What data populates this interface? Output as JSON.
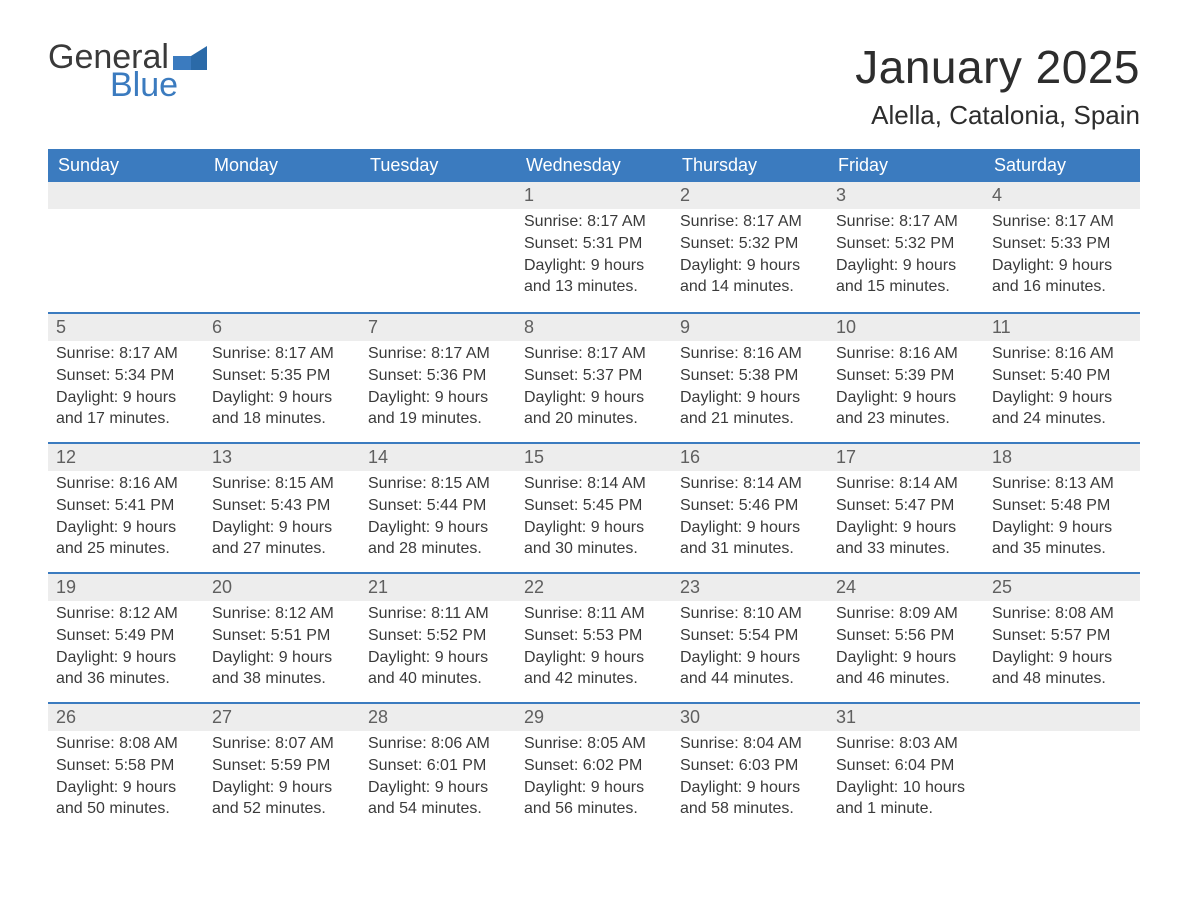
{
  "logo": {
    "line1": "General",
    "line2": "Blue"
  },
  "title": "January 2025",
  "location": "Alella, Catalonia, Spain",
  "colors": {
    "header_bg": "#3b7bbf",
    "header_text": "#ffffff",
    "row_bg": "#ededed",
    "row_border": "#3b7bbf",
    "body_text": "#3a3a3a",
    "date_text": "#5f5f5f",
    "page_bg": "#ffffff"
  },
  "weekdays": [
    "Sunday",
    "Monday",
    "Tuesday",
    "Wednesday",
    "Thursday",
    "Friday",
    "Saturday"
  ],
  "weeks": [
    [
      null,
      null,
      null,
      {
        "n": "1",
        "sr": "Sunrise: 8:17 AM",
        "ss": "Sunset: 5:31 PM",
        "d1": "Daylight: 9 hours",
        "d2": "and 13 minutes."
      },
      {
        "n": "2",
        "sr": "Sunrise: 8:17 AM",
        "ss": "Sunset: 5:32 PM",
        "d1": "Daylight: 9 hours",
        "d2": "and 14 minutes."
      },
      {
        "n": "3",
        "sr": "Sunrise: 8:17 AM",
        "ss": "Sunset: 5:32 PM",
        "d1": "Daylight: 9 hours",
        "d2": "and 15 minutes."
      },
      {
        "n": "4",
        "sr": "Sunrise: 8:17 AM",
        "ss": "Sunset: 5:33 PM",
        "d1": "Daylight: 9 hours",
        "d2": "and 16 minutes."
      }
    ],
    [
      {
        "n": "5",
        "sr": "Sunrise: 8:17 AM",
        "ss": "Sunset: 5:34 PM",
        "d1": "Daylight: 9 hours",
        "d2": "and 17 minutes."
      },
      {
        "n": "6",
        "sr": "Sunrise: 8:17 AM",
        "ss": "Sunset: 5:35 PM",
        "d1": "Daylight: 9 hours",
        "d2": "and 18 minutes."
      },
      {
        "n": "7",
        "sr": "Sunrise: 8:17 AM",
        "ss": "Sunset: 5:36 PM",
        "d1": "Daylight: 9 hours",
        "d2": "and 19 minutes."
      },
      {
        "n": "8",
        "sr": "Sunrise: 8:17 AM",
        "ss": "Sunset: 5:37 PM",
        "d1": "Daylight: 9 hours",
        "d2": "and 20 minutes."
      },
      {
        "n": "9",
        "sr": "Sunrise: 8:16 AM",
        "ss": "Sunset: 5:38 PM",
        "d1": "Daylight: 9 hours",
        "d2": "and 21 minutes."
      },
      {
        "n": "10",
        "sr": "Sunrise: 8:16 AM",
        "ss": "Sunset: 5:39 PM",
        "d1": "Daylight: 9 hours",
        "d2": "and 23 minutes."
      },
      {
        "n": "11",
        "sr": "Sunrise: 8:16 AM",
        "ss": "Sunset: 5:40 PM",
        "d1": "Daylight: 9 hours",
        "d2": "and 24 minutes."
      }
    ],
    [
      {
        "n": "12",
        "sr": "Sunrise: 8:16 AM",
        "ss": "Sunset: 5:41 PM",
        "d1": "Daylight: 9 hours",
        "d2": "and 25 minutes."
      },
      {
        "n": "13",
        "sr": "Sunrise: 8:15 AM",
        "ss": "Sunset: 5:43 PM",
        "d1": "Daylight: 9 hours",
        "d2": "and 27 minutes."
      },
      {
        "n": "14",
        "sr": "Sunrise: 8:15 AM",
        "ss": "Sunset: 5:44 PM",
        "d1": "Daylight: 9 hours",
        "d2": "and 28 minutes."
      },
      {
        "n": "15",
        "sr": "Sunrise: 8:14 AM",
        "ss": "Sunset: 5:45 PM",
        "d1": "Daylight: 9 hours",
        "d2": "and 30 minutes."
      },
      {
        "n": "16",
        "sr": "Sunrise: 8:14 AM",
        "ss": "Sunset: 5:46 PM",
        "d1": "Daylight: 9 hours",
        "d2": "and 31 minutes."
      },
      {
        "n": "17",
        "sr": "Sunrise: 8:14 AM",
        "ss": "Sunset: 5:47 PM",
        "d1": "Daylight: 9 hours",
        "d2": "and 33 minutes."
      },
      {
        "n": "18",
        "sr": "Sunrise: 8:13 AM",
        "ss": "Sunset: 5:48 PM",
        "d1": "Daylight: 9 hours",
        "d2": "and 35 minutes."
      }
    ],
    [
      {
        "n": "19",
        "sr": "Sunrise: 8:12 AM",
        "ss": "Sunset: 5:49 PM",
        "d1": "Daylight: 9 hours",
        "d2": "and 36 minutes."
      },
      {
        "n": "20",
        "sr": "Sunrise: 8:12 AM",
        "ss": "Sunset: 5:51 PM",
        "d1": "Daylight: 9 hours",
        "d2": "and 38 minutes."
      },
      {
        "n": "21",
        "sr": "Sunrise: 8:11 AM",
        "ss": "Sunset: 5:52 PM",
        "d1": "Daylight: 9 hours",
        "d2": "and 40 minutes."
      },
      {
        "n": "22",
        "sr": "Sunrise: 8:11 AM",
        "ss": "Sunset: 5:53 PM",
        "d1": "Daylight: 9 hours",
        "d2": "and 42 minutes."
      },
      {
        "n": "23",
        "sr": "Sunrise: 8:10 AM",
        "ss": "Sunset: 5:54 PM",
        "d1": "Daylight: 9 hours",
        "d2": "and 44 minutes."
      },
      {
        "n": "24",
        "sr": "Sunrise: 8:09 AM",
        "ss": "Sunset: 5:56 PM",
        "d1": "Daylight: 9 hours",
        "d2": "and 46 minutes."
      },
      {
        "n": "25",
        "sr": "Sunrise: 8:08 AM",
        "ss": "Sunset: 5:57 PM",
        "d1": "Daylight: 9 hours",
        "d2": "and 48 minutes."
      }
    ],
    [
      {
        "n": "26",
        "sr": "Sunrise: 8:08 AM",
        "ss": "Sunset: 5:58 PM",
        "d1": "Daylight: 9 hours",
        "d2": "and 50 minutes."
      },
      {
        "n": "27",
        "sr": "Sunrise: 8:07 AM",
        "ss": "Sunset: 5:59 PM",
        "d1": "Daylight: 9 hours",
        "d2": "and 52 minutes."
      },
      {
        "n": "28",
        "sr": "Sunrise: 8:06 AM",
        "ss": "Sunset: 6:01 PM",
        "d1": "Daylight: 9 hours",
        "d2": "and 54 minutes."
      },
      {
        "n": "29",
        "sr": "Sunrise: 8:05 AM",
        "ss": "Sunset: 6:02 PM",
        "d1": "Daylight: 9 hours",
        "d2": "and 56 minutes."
      },
      {
        "n": "30",
        "sr": "Sunrise: 8:04 AM",
        "ss": "Sunset: 6:03 PM",
        "d1": "Daylight: 9 hours",
        "d2": "and 58 minutes."
      },
      {
        "n": "31",
        "sr": "Sunrise: 8:03 AM",
        "ss": "Sunset: 6:04 PM",
        "d1": "Daylight: 10 hours",
        "d2": "and 1 minute."
      },
      null
    ]
  ]
}
